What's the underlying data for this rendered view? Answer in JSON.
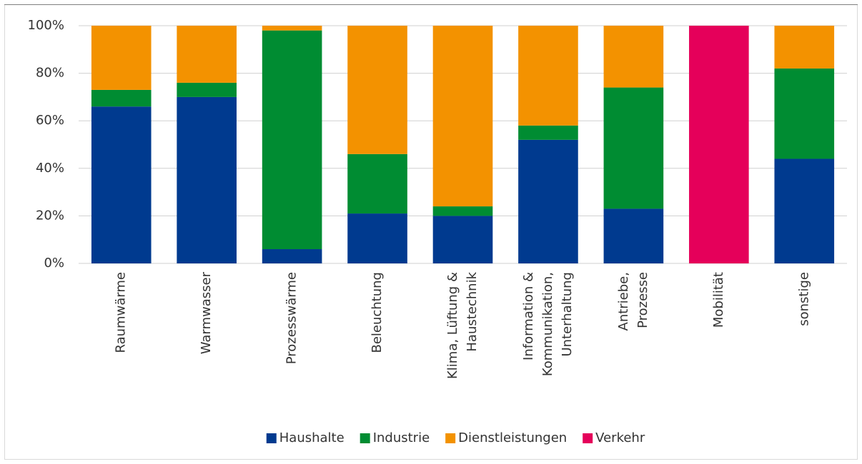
{
  "chart_data": {
    "type": "stacked_bar",
    "categories": [
      [
        "Raumwärme"
      ],
      [
        "Warmwasser"
      ],
      [
        "Prozesswärme"
      ],
      [
        "Beleuchtung"
      ],
      [
        "Klima, Lüftung &",
        "Haustechnik"
      ],
      [
        "Information &",
        "Kommunikation,",
        "Unterhaltung"
      ],
      [
        "Antriebe,",
        "Prozesse"
      ],
      [
        "Mobilität"
      ],
      [
        "sonstige"
      ]
    ],
    "series": [
      {
        "name": "Haushalte",
        "color": "#003a8f",
        "values": [
          66,
          70,
          6,
          21,
          20,
          52,
          23,
          0,
          44
        ]
      },
      {
        "name": "Industrie",
        "color": "#008c32",
        "values": [
          7,
          6,
          92,
          25,
          4,
          6,
          51,
          0,
          38
        ]
      },
      {
        "name": "Dienstleistungen",
        "color": "#f39200",
        "values": [
          27,
          24,
          2,
          54,
          76,
          42,
          26,
          0,
          18
        ]
      },
      {
        "name": "Verkehr",
        "color": "#e5005a",
        "values": [
          0,
          0,
          0,
          0,
          0,
          0,
          0,
          100,
          0
        ]
      }
    ],
    "ylim": [
      0,
      100
    ],
    "yticks": [
      {
        "value": 0,
        "label": "0%"
      },
      {
        "value": 20,
        "label": "20%"
      },
      {
        "value": 40,
        "label": "40%"
      },
      {
        "value": 60,
        "label": "60%"
      },
      {
        "value": 80,
        "label": "80%"
      },
      {
        "value": 100,
        "label": "100%"
      }
    ],
    "grid": true,
    "legend": "bottom"
  }
}
